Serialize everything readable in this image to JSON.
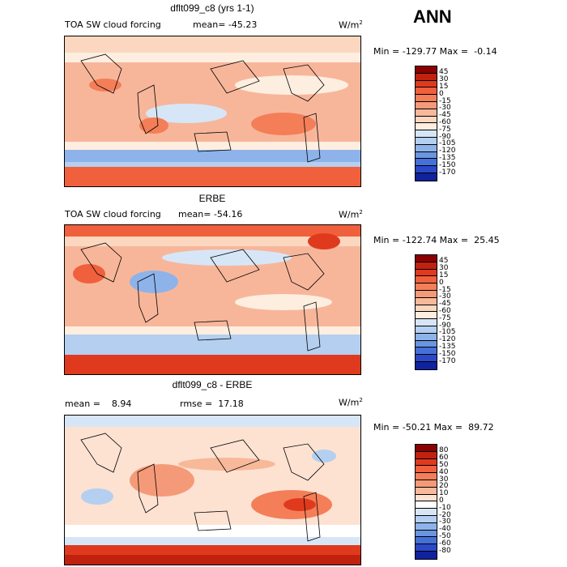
{
  "season": "ANN",
  "panels": [
    {
      "title": "dflt099_c8 (yrs 1-1)",
      "left_label": "TOA SW cloud forcing",
      "mean_label": "mean= -45.23",
      "extra_label": "",
      "units": "W/m",
      "units_sup": "2",
      "minmax": "Min = -129.77 Max =  -0.14",
      "colorbar": {
        "ticks": [
          "45",
          "30",
          "15",
          "0",
          "-15",
          "-30",
          "-45",
          "-60",
          "-75",
          "-90",
          "-105",
          "-120",
          "-135",
          "-150",
          "-170"
        ],
        "colors": [
          "#8b0000",
          "#c0220f",
          "#e03a1e",
          "#f0603c",
          "#f47e58",
          "#f59a78",
          "#f8b89a",
          "#fbd7c0",
          "#fdeee0",
          "#d7e6f7",
          "#b4cff0",
          "#8eb3ea",
          "#6a95e0",
          "#4570d8",
          "#2a48c8",
          "#10229c"
        ]
      }
    },
    {
      "title": "ERBE",
      "left_label": "TOA SW cloud forcing",
      "mean_label": "mean= -54.16",
      "extra_label": "",
      "units": "W/m",
      "units_sup": "2",
      "minmax": "Min = -122.74 Max =  25.45",
      "colorbar": {
        "ticks": [
          "45",
          "30",
          "15",
          "0",
          "-15",
          "-30",
          "-45",
          "-60",
          "-75",
          "-90",
          "-105",
          "-120",
          "-135",
          "-150",
          "-170"
        ],
        "colors": [
          "#8b0000",
          "#c0220f",
          "#e03a1e",
          "#f0603c",
          "#f47e58",
          "#f59a78",
          "#f8b89a",
          "#fbd7c0",
          "#fdeee0",
          "#d7e6f7",
          "#b4cff0",
          "#8eb3ea",
          "#6a95e0",
          "#4570d8",
          "#2a48c8",
          "#10229c"
        ]
      }
    },
    {
      "title": "dflt099_c8 - ERBE",
      "left_label": "mean =    8.94",
      "mean_label": "rmse =  17.18",
      "extra_label": "",
      "units": "W/m",
      "units_sup": "2",
      "minmax": "Min = -50.21 Max =  89.72",
      "colorbar": {
        "ticks": [
          "80",
          "60",
          "50",
          "40",
          "30",
          "20",
          "10",
          "0",
          "-10",
          "-20",
          "-30",
          "-40",
          "-50",
          "-60",
          "-80"
        ],
        "colors": [
          "#8b0000",
          "#c0220f",
          "#e03a1e",
          "#f0603c",
          "#f47e58",
          "#f59a78",
          "#f8b89a",
          "#fde2d2",
          "#ffffff",
          "#d7e6f7",
          "#b4cff0",
          "#8eb3ea",
          "#6a95e0",
          "#4570d8",
          "#2a48c8",
          "#10229c"
        ]
      }
    }
  ]
}
